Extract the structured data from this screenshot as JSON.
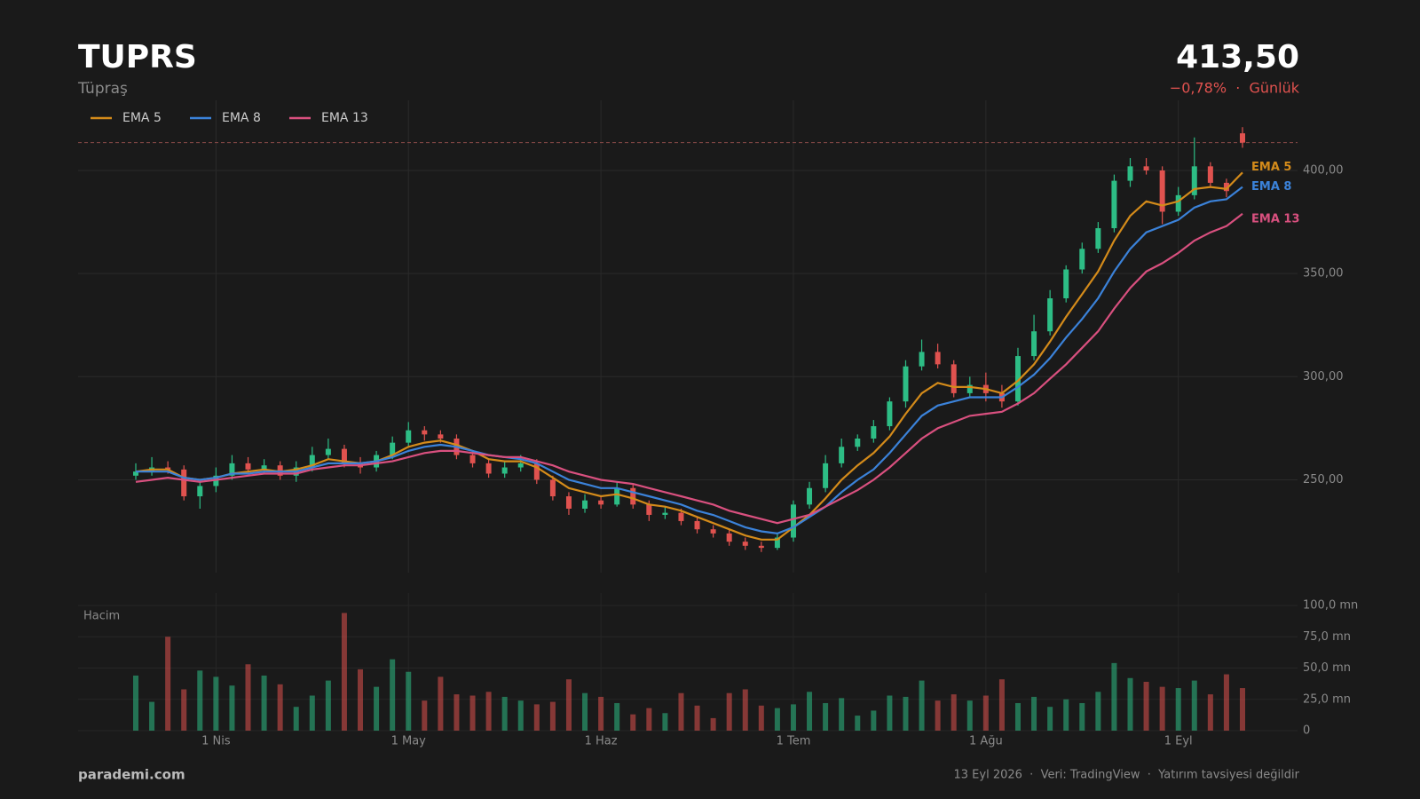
{
  "header": {
    "symbol": "TUPRS",
    "name": "Tüpraş",
    "last_price": {
      "value": 413.5,
      "label": "413,50"
    },
    "change": "−0,78%  ·  Günlük"
  },
  "footer": {
    "brand": "parademi.com",
    "note": "13 Eyl 2026  ·  Veri: TradingView  ·  Yatırım tavsiyesi değildir"
  },
  "chart_data": {
    "type": "candlestick",
    "categories": [
      null,
      null,
      null,
      null,
      null,
      "1 Nis",
      null,
      null,
      null,
      null,
      null,
      null,
      null,
      null,
      null,
      null,
      null,
      "1 May",
      null,
      null,
      null,
      null,
      null,
      null,
      null,
      null,
      null,
      null,
      null,
      "1 Haz",
      null,
      null,
      null,
      null,
      null,
      null,
      null,
      null,
      null,
      null,
      null,
      "1 Tem",
      null,
      null,
      null,
      null,
      null,
      null,
      null,
      null,
      null,
      null,
      null,
      "1 Ağu",
      null,
      null,
      null,
      null,
      null,
      null,
      null,
      null,
      null,
      null,
      null,
      "1 Eyl",
      null,
      null,
      null,
      null
    ],
    "open": [
      252,
      254,
      256,
      255,
      242,
      247,
      252,
      258,
      255,
      257,
      252,
      256,
      262,
      265,
      258,
      256,
      262,
      268,
      274,
      272,
      270,
      262,
      258,
      253,
      256,
      258,
      250,
      242,
      236,
      240,
      238,
      246,
      238,
      233,
      234,
      230,
      226,
      224,
      220,
      218,
      217,
      222,
      238,
      246,
      258,
      266,
      270,
      276,
      288,
      305,
      312,
      306,
      292,
      296,
      292,
      288,
      310,
      322,
      338,
      352,
      362,
      372,
      395,
      402,
      400,
      380,
      388,
      402,
      394,
      418
    ],
    "high": [
      258,
      261,
      259,
      257,
      250,
      256,
      262,
      261,
      260,
      259,
      259,
      266,
      270,
      267,
      261,
      264,
      271,
      278,
      276,
      274,
      272,
      264,
      260,
      259,
      262,
      260,
      252,
      244,
      243,
      242,
      249,
      248,
      240,
      237,
      236,
      232,
      228,
      226,
      222,
      220,
      224,
      240,
      249,
      262,
      270,
      272,
      279,
      290,
      308,
      318,
      316,
      308,
      300,
      302,
      296,
      314,
      330,
      342,
      354,
      365,
      375,
      398,
      406,
      406,
      402,
      392,
      416,
      404,
      396,
      421
    ],
    "low": [
      250,
      252,
      253,
      240,
      236,
      244,
      250,
      253,
      253,
      250,
      249,
      254,
      260,
      256,
      253,
      254,
      260,
      266,
      269,
      268,
      260,
      256,
      251,
      251,
      254,
      248,
      240,
      233,
      234,
      236,
      237,
      236,
      230,
      231,
      228,
      224,
      222,
      218,
      216,
      215,
      216,
      220,
      236,
      244,
      256,
      264,
      268,
      274,
      285,
      303,
      304,
      290,
      290,
      288,
      285,
      286,
      308,
      320,
      336,
      350,
      360,
      370,
      392,
      398,
      374,
      378,
      386,
      392,
      387,
      411
    ],
    "close": [
      254,
      256,
      255,
      242,
      247,
      252,
      258,
      255,
      257,
      252,
      256,
      262,
      265,
      258,
      256,
      262,
      268,
      274,
      272,
      270,
      262,
      258,
      253,
      256,
      258,
      250,
      242,
      236,
      240,
      238,
      246,
      238,
      233,
      234,
      230,
      226,
      224,
      220,
      218,
      217,
      222,
      238,
      246,
      258,
      266,
      270,
      276,
      288,
      305,
      312,
      306,
      292,
      296,
      292,
      288,
      310,
      322,
      338,
      352,
      362,
      372,
      395,
      402,
      400,
      380,
      388,
      402,
      394,
      390,
      413.5
    ],
    "volume_label": "Hacim",
    "volume": [
      44,
      23,
      75,
      33,
      48,
      43,
      36,
      53,
      44,
      37,
      19,
      28,
      40,
      94,
      49,
      35,
      57,
      47,
      24,
      43,
      29,
      28,
      31,
      27,
      24,
      21,
      23,
      41,
      30,
      27,
      22,
      13,
      18,
      14,
      30,
      20,
      10,
      30,
      33,
      20,
      18,
      21,
      31,
      22,
      26,
      12,
      16,
      28,
      27,
      40,
      24,
      29,
      24,
      28,
      41,
      22,
      27,
      19,
      25,
      22,
      31,
      54,
      42,
      39,
      35,
      34,
      40,
      29,
      45,
      34
    ],
    "series": [
      {
        "name": "EMA 5",
        "color": "#d48b1a",
        "values": [
          254,
          255,
          255,
          251,
          250,
          251,
          253,
          254,
          255,
          254,
          255,
          257,
          260,
          259,
          258,
          259,
          262,
          266,
          268,
          269,
          267,
          264,
          260,
          259,
          259,
          256,
          251,
          246,
          244,
          242,
          243,
          241,
          238,
          237,
          235,
          232,
          229,
          226,
          223,
          221,
          221,
          227,
          233,
          241,
          250,
          257,
          263,
          271,
          282,
          292,
          297,
          295,
          295,
          294,
          292,
          298,
          306,
          317,
          329,
          340,
          351,
          366,
          378,
          385,
          383,
          385,
          391,
          392,
          391,
          399
        ]
      },
      {
        "name": "EMA 8",
        "color": "#3b82d9",
        "values": [
          254,
          254,
          254,
          251,
          250,
          251,
          253,
          253,
          254,
          254,
          254,
          256,
          258,
          258,
          258,
          259,
          261,
          264,
          266,
          267,
          266,
          264,
          262,
          261,
          260,
          258,
          254,
          250,
          248,
          246,
          246,
          244,
          242,
          240,
          238,
          235,
          233,
          230,
          227,
          225,
          224,
          227,
          232,
          237,
          244,
          250,
          255,
          263,
          272,
          281,
          286,
          288,
          290,
          290,
          290,
          295,
          301,
          309,
          319,
          328,
          338,
          351,
          362,
          370,
          373,
          376,
          382,
          385,
          386,
          392
        ]
      },
      {
        "name": "EMA 13",
        "color": "#d9507f",
        "values": [
          249,
          250,
          251,
          250,
          249,
          250,
          251,
          252,
          253,
          253,
          253,
          255,
          256,
          257,
          257,
          258,
          259,
          261,
          263,
          264,
          264,
          263,
          262,
          261,
          261,
          259,
          257,
          254,
          252,
          250,
          249,
          248,
          246,
          244,
          242,
          240,
          238,
          235,
          233,
          231,
          229,
          231,
          233,
          237,
          241,
          245,
          250,
          256,
          263,
          270,
          275,
          278,
          281,
          282,
          283,
          287,
          292,
          299,
          306,
          314,
          322,
          333,
          343,
          351,
          355,
          360,
          366,
          370,
          373,
          379
        ]
      }
    ],
    "up_color": "#2dbd85",
    "down_color": "#e0524f",
    "ylim": [
      205,
      434
    ],
    "yticks": [
      {
        "value": 250,
        "label": "250,00"
      },
      {
        "value": 300,
        "label": "300,00"
      },
      {
        "value": 350,
        "label": "350,00"
      },
      {
        "value": 400,
        "label": "400,00"
      }
    ],
    "volume_ylim": [
      0,
      100
    ],
    "volume_yticks": [
      0,
      {
        "value": 25,
        "label": "25,0 mn"
      },
      {
        "value": 50,
        "label": "50,0 mn"
      },
      {
        "value": 75,
        "label": "75,0 mn"
      },
      {
        "value": 100,
        "label": "100,0 mn"
      }
    ],
    "grid": true,
    "legend": "upper left"
  }
}
